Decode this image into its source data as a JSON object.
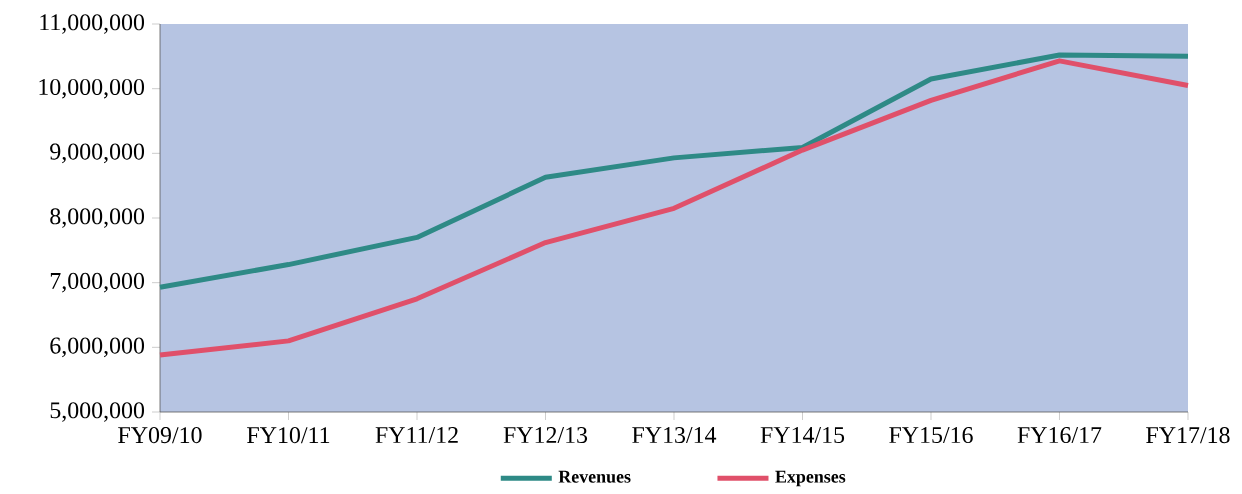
{
  "chart_data": {
    "type": "line",
    "categories": [
      "FY09/10",
      "FY10/11",
      "FY11/12",
      "FY12/13",
      "FY13/14",
      "FY14/15",
      "FY15/16",
      "FY16/17",
      "FY17/18"
    ],
    "series": [
      {
        "name": "Revenues",
        "color": "#2e8a86",
        "values": [
          6930000,
          7280000,
          7700000,
          8630000,
          8930000,
          9090000,
          10150000,
          10520000,
          10500000
        ]
      },
      {
        "name": "Expenses",
        "color": "#e0506a",
        "values": [
          5880000,
          6100000,
          6750000,
          7620000,
          8150000,
          9050000,
          9820000,
          10430000,
          10050000
        ]
      }
    ],
    "ylim": [
      5000000,
      11000000
    ],
    "yticks": [
      {
        "value": 5000000,
        "label": "5,000,000"
      },
      {
        "value": 6000000,
        "label": "6,000,000"
      },
      {
        "value": 7000000,
        "label": "7,000,000"
      },
      {
        "value": 8000000,
        "label": "8,000,000"
      },
      {
        "value": 9000000,
        "label": "9,000,000"
      },
      {
        "value": 10000000,
        "label": "10,000,000"
      },
      {
        "value": 11000000,
        "label": "11,000,000"
      }
    ],
    "grid": false,
    "legend": "bottom",
    "marker": "none",
    "line_style": "solid"
  }
}
